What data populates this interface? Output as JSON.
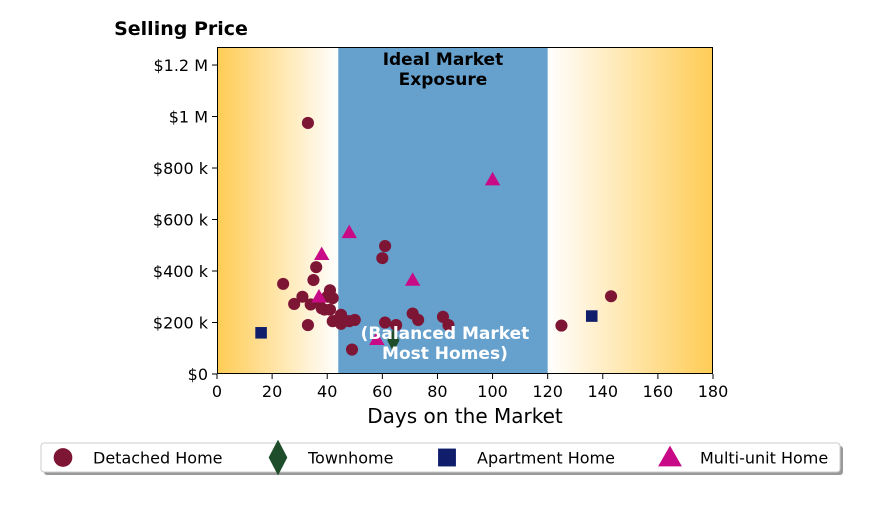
{
  "chart_data": {
    "type": "scatter",
    "title": "",
    "xlabel": "Days on the Market",
    "ylabel": "Selling Price",
    "xlim": [
      0,
      180
    ],
    "ylim": [
      0,
      1270000
    ],
    "x_ticks": [
      0,
      20,
      40,
      60,
      80,
      100,
      120,
      140,
      160,
      180
    ],
    "x_tick_labels": [
      "0",
      "20",
      "40",
      "60",
      "80",
      "100",
      "120",
      "140",
      "160",
      "180"
    ],
    "y_ticks": [
      0,
      200000,
      400000,
      600000,
      800000,
      1000000,
      1200000
    ],
    "y_tick_labels": [
      "$0",
      "$200 k",
      "$400 k",
      "$600 k",
      "$800 k",
      "$1 M",
      "$1.2 M"
    ],
    "grid": false,
    "legend_position": "bottom",
    "zones": [
      {
        "x_range": [
          44,
          120
        ],
        "line1": "Ideal Market",
        "line2": "Exposure",
        "color": "#66a0cc",
        "text_color": "#000000",
        "text_position": "top"
      },
      {
        "line1": "(Balanced Market",
        "line2": "Most Homes)",
        "text_color": "#ffffff",
        "text_position": "bottom"
      }
    ],
    "gradient": {
      "edge_color": "#ffcc55",
      "center_color": "#ffffff"
    },
    "series": [
      {
        "name": "Detached Home",
        "marker": "circle",
        "color": "#7d1535",
        "points": [
          [
            33,
            975000
          ],
          [
            24,
            350000
          ],
          [
            28,
            272000
          ],
          [
            31,
            300000
          ],
          [
            33,
            190000
          ],
          [
            34,
            270000
          ],
          [
            35,
            365000
          ],
          [
            36,
            415000
          ],
          [
            37,
            280000
          ],
          [
            38,
            255000
          ],
          [
            39,
            250000
          ],
          [
            40,
            300000
          ],
          [
            41,
            325000
          ],
          [
            41,
            250000
          ],
          [
            42,
            295000
          ],
          [
            42,
            205000
          ],
          [
            44,
            212000
          ],
          [
            45,
            230000
          ],
          [
            45,
            195000
          ],
          [
            46,
            210000
          ],
          [
            48,
            205000
          ],
          [
            49,
            95000
          ],
          [
            50,
            210000
          ],
          [
            60,
            450000
          ],
          [
            61,
            497000
          ],
          [
            61,
            200000
          ],
          [
            65,
            190000
          ],
          [
            71,
            235000
          ],
          [
            73,
            210000
          ],
          [
            82,
            222000
          ],
          [
            84,
            190000
          ],
          [
            125,
            188000
          ],
          [
            143,
            302000
          ]
        ]
      },
      {
        "name": "Townhome",
        "marker": "diamond",
        "color": "#1e4d2b",
        "points": [
          [
            64,
            130000
          ]
        ]
      },
      {
        "name": "Apartment Home",
        "marker": "square",
        "color": "#101d6b",
        "points": [
          [
            16,
            160000
          ],
          [
            136,
            225000
          ]
        ]
      },
      {
        "name": "Multi-unit Home",
        "marker": "triangle",
        "color": "#c90a86",
        "points": [
          [
            38,
            465000
          ],
          [
            37,
            300000
          ],
          [
            48,
            550000
          ],
          [
            58,
            135000
          ],
          [
            71,
            365000
          ],
          [
            100,
            755000
          ]
        ]
      }
    ]
  }
}
